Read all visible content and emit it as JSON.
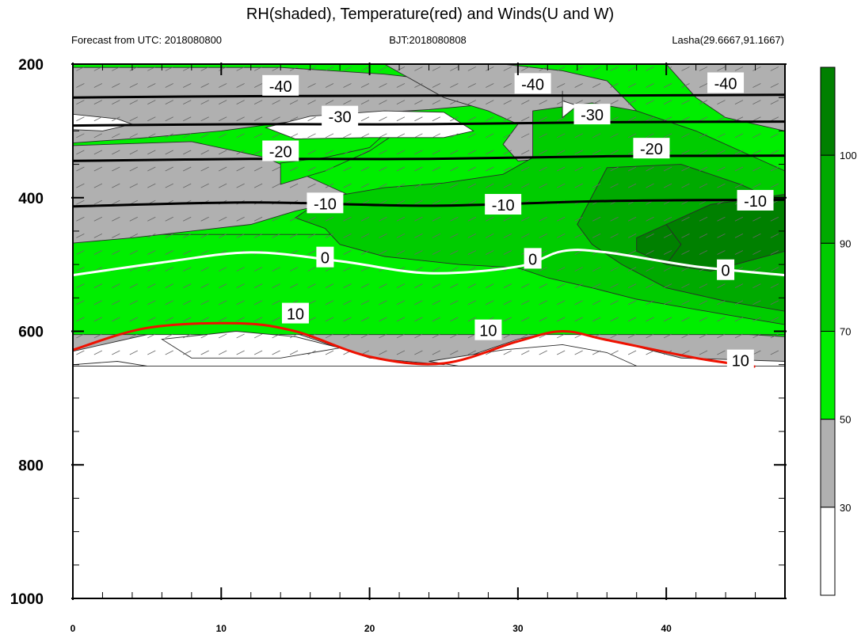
{
  "title": "RH(shaded), Temperature(red) and Winds(U and W)",
  "subtitles": {
    "left": "Forecast from UTC: 2018080800",
    "center": "BJT:2018080808",
    "right": "Lasha(29.6667,91.1667)"
  },
  "colors": {
    "white": "#ffffff",
    "gray": "#b0b0b0",
    "light_green": "#00ee00",
    "green": "#00cc00",
    "mid_green": "#00aa00",
    "dark_green": "#008000",
    "temperature_line": "#ee1100",
    "freezing_line": "#ffffff",
    "cold_line": "#000000"
  },
  "chart_data": {
    "type": "heatmap",
    "title": "RH(shaded), Temperature(red) and Winds(U and W)",
    "x_axis": {
      "range": [
        0,
        48
      ],
      "ticks": [
        0,
        10,
        20,
        30,
        40
      ],
      "tick_labels": [
        "0",
        "10",
        "20",
        "30",
        "40"
      ],
      "xlabel": ""
    },
    "y_axis": {
      "range": [
        1000,
        200
      ],
      "ticks": [
        200,
        400,
        600,
        800,
        1000
      ],
      "tick_labels": [
        "200",
        "400",
        "600",
        "800",
        "1000"
      ],
      "ylabel": "",
      "inverted": true
    },
    "colorbar": {
      "levels": [
        30,
        50,
        70,
        90,
        100
      ],
      "labels": [
        "30",
        "50",
        "70",
        "90",
        "100"
      ],
      "colors": [
        "#ffffff",
        "#b0b0b0",
        "#00ee00",
        "#00cc00",
        "#00aa00",
        "#008000"
      ]
    },
    "temperature_contours": [
      {
        "label": "-40",
        "points": [
          [
            0,
            250
          ],
          [
            12,
            248
          ],
          [
            24,
            247
          ],
          [
            36,
            247
          ],
          [
            48,
            246
          ]
        ]
      },
      {
        "label": "-30",
        "points": [
          [
            0,
            292
          ],
          [
            12,
            290
          ],
          [
            24,
            290
          ],
          [
            36,
            287
          ],
          [
            48,
            286
          ]
        ]
      },
      {
        "label": "-20",
        "points": [
          [
            0,
            345
          ],
          [
            12,
            342
          ],
          [
            24,
            342
          ],
          [
            36,
            338
          ],
          [
            48,
            337
          ]
        ]
      },
      {
        "label": "-10",
        "points": [
          [
            0,
            413
          ],
          [
            12,
            407
          ],
          [
            24,
            412
          ],
          [
            36,
            405
          ],
          [
            48,
            403
          ]
        ]
      },
      {
        "label": "0",
        "points": [
          [
            0,
            516
          ],
          [
            6,
            497
          ],
          [
            12,
            482
          ],
          [
            18,
            495
          ],
          [
            24,
            513
          ],
          [
            30,
            503
          ],
          [
            33,
            480
          ],
          [
            36,
            482
          ],
          [
            42,
            503
          ],
          [
            48,
            516
          ]
        ]
      },
      {
        "label": "10",
        "points": [
          [
            0,
            628
          ],
          [
            5,
            595
          ],
          [
            11,
            588
          ],
          [
            15,
            600
          ],
          [
            20,
            638
          ],
          [
            25,
            648
          ],
          [
            30,
            615
          ],
          [
            33,
            600
          ],
          [
            36,
            613
          ],
          [
            42,
            640
          ],
          [
            46,
            653
          ]
        ]
      }
    ],
    "contour_labels": [
      {
        "text": "-40",
        "x": 14,
        "y": 233
      },
      {
        "text": "-40",
        "x": 31,
        "y": 230
      },
      {
        "text": "-40",
        "x": 44,
        "y": 229
      },
      {
        "text": "-30",
        "x": 18,
        "y": 279
      },
      {
        "text": "-30",
        "x": 35,
        "y": 276
      },
      {
        "text": "-20",
        "x": 14,
        "y": 331
      },
      {
        "text": "-20",
        "x": 39,
        "y": 327
      },
      {
        "text": "-10",
        "x": 17,
        "y": 409
      },
      {
        "text": "-10",
        "x": 29,
        "y": 411
      },
      {
        "text": "-10",
        "x": 46,
        "y": 405
      },
      {
        "text": "0",
        "x": 17,
        "y": 490
      },
      {
        "text": "0",
        "x": 31,
        "y": 492
      },
      {
        "text": "0",
        "x": 44,
        "y": 509
      },
      {
        "text": "10",
        "x": 15,
        "y": 574
      },
      {
        "text": "10",
        "x": 28,
        "y": 599
      },
      {
        "text": "10",
        "x": 45,
        "y": 644
      }
    ],
    "grid": false,
    "legend": "colorbar-right"
  }
}
